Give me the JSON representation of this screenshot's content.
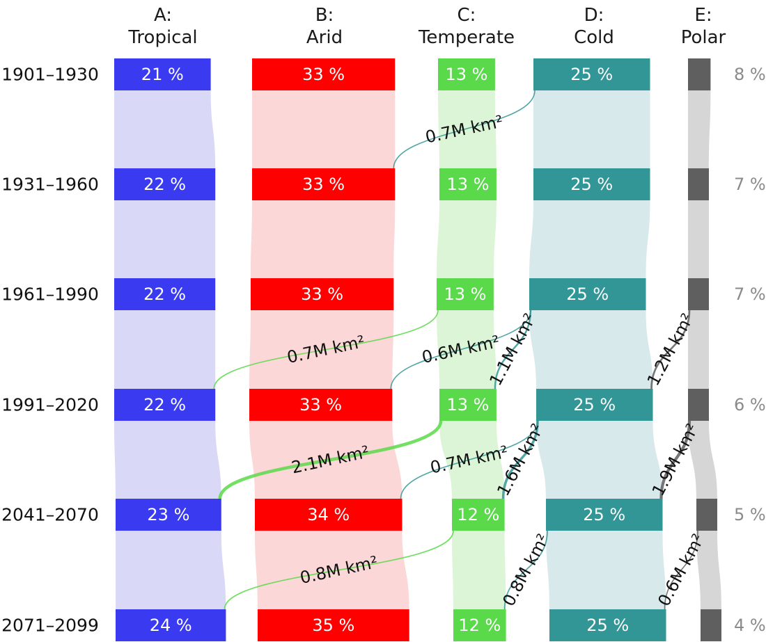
{
  "chart_data": {
    "type": "sankey",
    "title": "",
    "categories": [
      {
        "id": "A",
        "letter": "A:",
        "name": "Tropical",
        "color": "#3a3af0",
        "band": "#d9d9f7"
      },
      {
        "id": "B",
        "letter": "B:",
        "name": "Arid",
        "color": "#ff0000",
        "band": "#fbd7d7"
      },
      {
        "id": "C",
        "letter": "C:",
        "name": "Temperate",
        "color": "#5ad94a",
        "band": "#dcf5d6"
      },
      {
        "id": "D",
        "letter": "D:",
        "name": "Cold",
        "color": "#339696",
        "band": "#d7e9ea"
      },
      {
        "id": "E",
        "letter": "E:",
        "name": "Polar",
        "color": "#5f5f5f",
        "band": "#d6d6d6"
      }
    ],
    "periods": [
      "1901–1930",
      "1931–1960",
      "1961–1990",
      "1991–2020",
      "2041–2070",
      "2071–2099"
    ],
    "shares_percent": {
      "A": [
        21,
        22,
        22,
        22,
        23,
        24
      ],
      "B": [
        33,
        33,
        33,
        33,
        34,
        35
      ],
      "C": [
        13,
        13,
        13,
        13,
        12,
        12
      ],
      "D": [
        25,
        25,
        25,
        25,
        25,
        25
      ],
      "E": [
        8,
        7,
        7,
        6,
        5,
        4
      ]
    },
    "share_labels": {
      "A": [
        "21 %",
        "22 %",
        "22 %",
        "22 %",
        "23 %",
        "24 %"
      ],
      "B": [
        "33 %",
        "33 %",
        "33 %",
        "33 %",
        "34 %",
        "35 %"
      ],
      "C": [
        "13 %",
        "13 %",
        "13 %",
        "13 %",
        "12 %",
        "12 %"
      ],
      "D": [
        "25 %",
        "25 %",
        "25 %",
        "25 %",
        "25 %",
        "25 %"
      ],
      "E": [
        "8 %",
        "7 %",
        "7 %",
        "6 %",
        "5 %",
        "4 %"
      ]
    },
    "flows": [
      {
        "from": "D",
        "to": "B",
        "period_index": 0,
        "value_mkm2": 0.7,
        "label": "0.7M km²"
      },
      {
        "from": "C",
        "to": "A",
        "period_index": 2,
        "value_mkm2": 0.7,
        "label": "0.7M km²"
      },
      {
        "from": "D",
        "to": "B",
        "period_index": 2,
        "value_mkm2": 0.6,
        "label": "0.6M km²"
      },
      {
        "from": "D",
        "to": "C",
        "period_index": 2,
        "value_mkm2": 1.1,
        "label": "1.1M km²"
      },
      {
        "from": "E",
        "to": "D",
        "period_index": 2,
        "value_mkm2": 1.2,
        "label": "1.2M km²"
      },
      {
        "from": "C",
        "to": "A",
        "period_index": 3,
        "value_mkm2": 2.1,
        "label": "2.1M km²"
      },
      {
        "from": "D",
        "to": "B",
        "period_index": 3,
        "value_mkm2": 0.7,
        "label": "0.7M km²"
      },
      {
        "from": "D",
        "to": "C",
        "period_index": 3,
        "value_mkm2": 1.6,
        "label": "1.6M km²"
      },
      {
        "from": "E",
        "to": "D",
        "period_index": 3,
        "value_mkm2": 1.9,
        "label": "1.9M km²"
      },
      {
        "from": "C",
        "to": "A",
        "period_index": 4,
        "value_mkm2": 0.8,
        "label": "0.8M km²"
      },
      {
        "from": "D",
        "to": "C",
        "period_index": 4,
        "value_mkm2": 0.8,
        "label": "0.8M km²"
      },
      {
        "from": "E",
        "to": "D",
        "period_index": 4,
        "value_mkm2": 0.6,
        "label": "0.6M km²"
      }
    ]
  }
}
